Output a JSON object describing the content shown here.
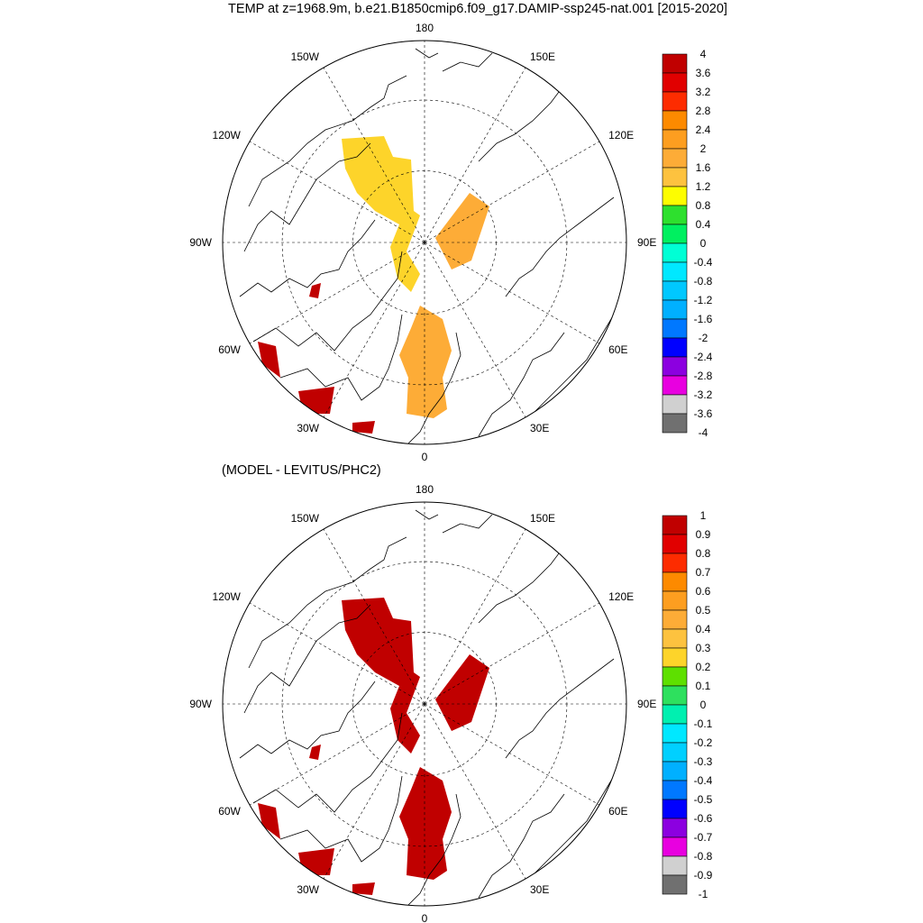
{
  "title": "TEMP at z=1968.9m, b.e21.B1850cmip6.f09_g17.DAMIP-ssp245-nat.001 [2015-2020]",
  "subtitle": "(MODEL - LEVITUS/PHC2)",
  "longitude_labels": [
    "180",
    "150E",
    "120E",
    "90E",
    "60E",
    "30E",
    "0",
    "30W",
    "60W",
    "90W",
    "120W",
    "150W"
  ],
  "colors": {
    "coastline": "#000000",
    "grid": "#000000",
    "missing": "#ffffff"
  },
  "panels": [
    {
      "name": "model-temperature",
      "field_color": "#fdd42a",
      "secondary_color": "#fdac37",
      "anomaly_color": "#c00000",
      "colorbar": {
        "labels": [
          "4",
          "3.6",
          "3.2",
          "2.8",
          "2.4",
          "2",
          "1.6",
          "1.2",
          "0.8",
          "0.4",
          "0",
          "-0.4",
          "-0.8",
          "-1.2",
          "-1.6",
          "-2",
          "-2.4",
          "-2.8",
          "-3.2",
          "-3.6",
          "-4"
        ],
        "colors": [
          "#c00000",
          "#e10000",
          "#fd2c00",
          "#fd8a00",
          "#fd9e20",
          "#fdac37",
          "#fdc23f",
          "#fdfd00",
          "#2ee02e",
          "#00f060",
          "#00ffd5",
          "#00e8ff",
          "#00c8ff",
          "#00b0ff",
          "#0078ff",
          "#0000ff",
          "#8c00e0",
          "#e800e0",
          "#d0d0d0",
          "#707070"
        ]
      }
    },
    {
      "name": "model-minus-levitus",
      "field_color": "#c00000",
      "secondary_color": "#c00000",
      "anomaly_color": "#c00000",
      "colorbar": {
        "labels": [
          "1",
          "0.9",
          "0.8",
          "0.7",
          "0.6",
          "0.5",
          "0.4",
          "0.3",
          "0.2",
          "0.1",
          "0",
          "-0.1",
          "-0.2",
          "-0.3",
          "-0.4",
          "-0.5",
          "-0.6",
          "-0.7",
          "-0.8",
          "-0.9",
          "-1"
        ],
        "colors": [
          "#c00000",
          "#e10000",
          "#fd2c00",
          "#fd8a00",
          "#fd9e20",
          "#fdac37",
          "#fdc23f",
          "#fdd42a",
          "#5ee000",
          "#2ee05e",
          "#00f0b0",
          "#00e8ff",
          "#00d0ff",
          "#00b0ff",
          "#0078ff",
          "#0000ff",
          "#8c00e0",
          "#e800e0",
          "#d0d0d0",
          "#707070"
        ]
      }
    }
  ]
}
